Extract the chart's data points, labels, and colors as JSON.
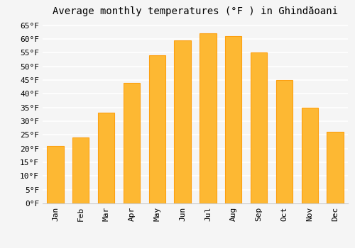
{
  "title": "Average monthly temperatures (°F ) in Ghindăoani",
  "months": [
    "Jan",
    "Feb",
    "Mar",
    "Apr",
    "May",
    "Jun",
    "Jul",
    "Aug",
    "Sep",
    "Oct",
    "Nov",
    "Dec"
  ],
  "values": [
    21,
    24,
    33,
    44,
    54,
    59.5,
    62,
    61,
    55,
    45,
    35,
    26
  ],
  "bar_color": "#FDB833",
  "bar_edge_color": "#FDA010",
  "ylim": [
    0,
    67
  ],
  "yticks": [
    0,
    5,
    10,
    15,
    20,
    25,
    30,
    35,
    40,
    45,
    50,
    55,
    60,
    65
  ],
  "ytick_labels": [
    "0°F",
    "5°F",
    "10°F",
    "15°F",
    "20°F",
    "25°F",
    "30°F",
    "35°F",
    "40°F",
    "45°F",
    "50°F",
    "55°F",
    "60°F",
    "65°F"
  ],
  "background_color": "#f5f5f5",
  "grid_color": "#ffffff",
  "title_fontsize": 10,
  "tick_fontsize": 8,
  "font_family": "monospace"
}
